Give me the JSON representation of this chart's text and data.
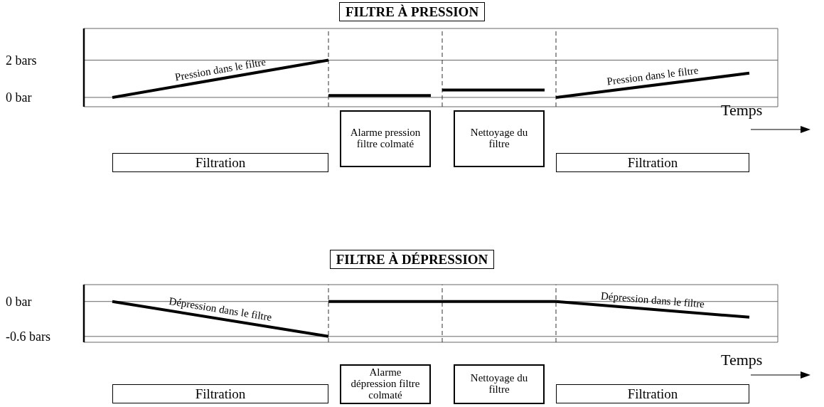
{
  "chart_data": [
    {
      "type": "line",
      "title": "FILTRE À PRESSION",
      "categories": [
        null,
        null,
        null,
        null,
        null,
        null,
        null,
        null,
        null,
        null,
        null,
        null,
        null,
        null,
        null,
        null,
        null,
        null,
        null,
        null,
        null,
        null,
        null,
        null,
        null,
        null,
        null,
        null,
        null,
        null,
        null,
        null,
        null,
        null,
        null,
        null,
        null,
        null,
        null,
        null,
        null,
        null,
        null,
        null,
        null,
        null,
        null,
        null,
        null,
        null,
        null,
        null,
        null,
        null,
        null,
        null,
        null,
        null,
        null,
        null,
        null
      ],
      "series": [
        {
          "color": "#000000",
          "values": [
            null,
            null,
            0,
            null,
            null,
            null,
            null,
            null,
            null,
            null,
            null,
            null,
            null,
            null,
            null,
            null,
            null,
            null,
            null,
            null,
            null,
            2,
            null,
            null,
            null,
            null,
            null,
            null,
            null,
            null,
            null,
            null,
            null,
            null,
            null,
            null,
            null,
            null,
            null,
            null,
            null,
            null,
            null,
            null,
            null,
            null,
            null,
            null,
            null,
            null,
            null,
            null,
            null,
            null,
            null,
            null,
            null,
            null,
            null,
            null,
            null
          ]
        },
        {
          "color": "#000000",
          "values": [
            null,
            null,
            null,
            null,
            null,
            null,
            null,
            null,
            null,
            null,
            null,
            null,
            null,
            null,
            null,
            null,
            null,
            null,
            null,
            null,
            null,
            0.1,
            null,
            null,
            null,
            null,
            null,
            null,
            null,
            null,
            0.1,
            null,
            null,
            null,
            null,
            null,
            null,
            null,
            null,
            null,
            null,
            null,
            null,
            null,
            null,
            null,
            null,
            null,
            null,
            null,
            null,
            null,
            null,
            null,
            null,
            null,
            null,
            null,
            null,
            null,
            null
          ]
        },
        {
          "color": "#000000",
          "values": [
            null,
            null,
            null,
            null,
            null,
            null,
            null,
            null,
            null,
            null,
            null,
            null,
            null,
            null,
            null,
            null,
            null,
            null,
            null,
            null,
            null,
            null,
            null,
            null,
            null,
            null,
            null,
            null,
            null,
            null,
            null,
            0.4,
            null,
            null,
            null,
            null,
            null,
            null,
            null,
            null,
            0.4,
            null,
            null,
            null,
            null,
            null,
            null,
            null,
            null,
            null,
            null,
            null,
            null,
            null,
            null,
            null,
            null,
            null,
            null,
            null,
            null
          ]
        },
        {
          "color": "#000000",
          "values": [
            null,
            null,
            null,
            null,
            null,
            null,
            null,
            null,
            null,
            null,
            null,
            null,
            null,
            null,
            null,
            null,
            null,
            null,
            null,
            null,
            null,
            null,
            null,
            null,
            null,
            null,
            null,
            null,
            null,
            null,
            null,
            null,
            null,
            null,
            null,
            null,
            null,
            null,
            null,
            null,
            null,
            0,
            null,
            null,
            null,
            null,
            null,
            null,
            null,
            null,
            null,
            null,
            null,
            null,
            null,
            null,
            null,
            null,
            1.3,
            null,
            null
          ]
        }
      ],
      "ylim": [
        -0.5,
        3.7
      ],
      "yticks": [
        {
          "value": 2,
          "label": "2 bars"
        },
        {
          "value": 0,
          "label": "0 bar"
        }
      ],
      "tick_labels": "y",
      "grid": true,
      "marker": "none",
      "line_style": "solid",
      "annotations": [
        "Pression dans le filtre",
        "Pression dans le filtre",
        "Filtration",
        "Alarme pression filtre colmaté",
        "Nettoyage du filtre",
        "Filtration",
        "Temps"
      ]
    },
    {
      "type": "line",
      "title": "FILTRE À DÉPRESSION",
      "categories": [
        null,
        null,
        null,
        null,
        null,
        null,
        null,
        null,
        null,
        null,
        null,
        null,
        null,
        null,
        null,
        null,
        null,
        null,
        null,
        null,
        null,
        null,
        null,
        null,
        null,
        null,
        null,
        null,
        null,
        null,
        null,
        null,
        null,
        null,
        null,
        null,
        null,
        null,
        null,
        null,
        null,
        null,
        null,
        null,
        null,
        null,
        null,
        null,
        null,
        null,
        null,
        null,
        null,
        null,
        null,
        null,
        null,
        null,
        null,
        null,
        null
      ],
      "series": [
        {
          "color": "#000000",
          "values": [
            null,
            null,
            0,
            null,
            null,
            null,
            null,
            null,
            null,
            null,
            null,
            null,
            null,
            null,
            null,
            null,
            null,
            null,
            null,
            null,
            null,
            -0.6,
            null,
            null,
            null,
            null,
            null,
            null,
            null,
            null,
            null,
            null,
            null,
            null,
            null,
            null,
            null,
            null,
            null,
            null,
            null,
            null,
            null,
            null,
            null,
            null,
            null,
            null,
            null,
            null,
            null,
            null,
            null,
            null,
            null,
            null,
            null,
            null,
            null,
            null,
            null
          ]
        },
        {
          "color": "#000000",
          "values": [
            null,
            null,
            null,
            null,
            null,
            null,
            null,
            null,
            null,
            null,
            null,
            null,
            null,
            null,
            null,
            null,
            null,
            null,
            null,
            null,
            null,
            0,
            null,
            null,
            null,
            null,
            null,
            null,
            null,
            null,
            null,
            null,
            null,
            null,
            null,
            null,
            null,
            null,
            null,
            null,
            null,
            0,
            null,
            null,
            null,
            null,
            null,
            null,
            null,
            null,
            null,
            null,
            null,
            null,
            null,
            null,
            null,
            null,
            -0.27,
            null,
            null
          ]
        }
      ],
      "ylim": [
        -0.7,
        0.29
      ],
      "yticks": [
        {
          "value": 0,
          "label": "0 bar"
        },
        {
          "value": -0.6,
          "label": "-0.6 bars"
        }
      ],
      "tick_labels": "y",
      "grid": true,
      "marker": "none",
      "line_style": "solid",
      "annotations": [
        "Dépression dans le filtre",
        "Dépression dans le filtre",
        "Filtration",
        "Alarme dépression filtre colmaté",
        "Nettoyage du filtre",
        "Filtration",
        "Temps"
      ]
    }
  ]
}
